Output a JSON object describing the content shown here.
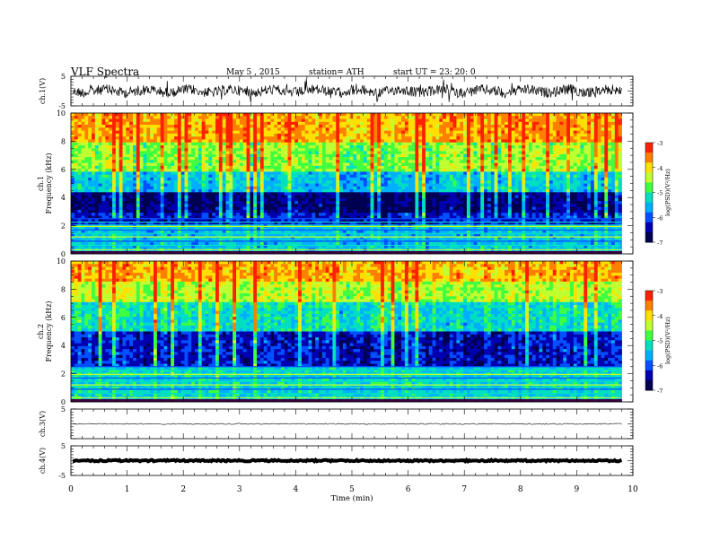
{
  "header": {
    "title": "VLF  Spectra",
    "date": "May 5   , 2015",
    "station": "station= ATH",
    "start_ut": "start  UT  =   23: 20: 0"
  },
  "chart_data": [
    {
      "type": "line",
      "panel": "ch1-waveform",
      "ylabel": "ch.1(V)",
      "ylim": [
        -5,
        5
      ],
      "y_tick_labels": [
        "5",
        "-5"
      ],
      "xlim": [
        0,
        10
      ],
      "series": [
        {
          "values_summary": "noisy waveform centered near 0 V, envelope about -2 to +2 V with spikes",
          "color": "#000000"
        }
      ]
    },
    {
      "type": "heatmap",
      "panel": "ch1-spectrogram",
      "ylabel": "ch.1\nFrequency (kHz)",
      "ylabel_line1": "ch.1",
      "ylabel_line2": "Frequency  (kHz)",
      "ylim": [
        0,
        10
      ],
      "y_tick_labels": [
        "10",
        "8",
        "6",
        "4",
        "2",
        "0"
      ],
      "xlim": [
        0,
        9.8
      ],
      "description_levels": [
        {
          "freq_khz": [
            0,
            2
          ],
          "log_psd": -5.5,
          "note": "horizontal narrowband lines"
        },
        {
          "freq_khz": [
            2,
            3
          ],
          "log_psd": -6.3
        },
        {
          "freq_khz": [
            3,
            4.3
          ],
          "log_psd": -6.7
        },
        {
          "freq_khz": [
            4.3,
            5.8
          ],
          "log_psd": -5.5
        },
        {
          "freq_khz": [
            5.8,
            8
          ],
          "log_psd": -4.6
        },
        {
          "freq_khz": [
            8,
            10
          ],
          "log_psd": -3.8
        }
      ],
      "colorbar": {
        "label": "log(PSD)(V²/Hz)",
        "range": [
          -7,
          -3
        ],
        "ticks": [
          "-3",
          "-4",
          "-5",
          "-6",
          "-7"
        ]
      }
    },
    {
      "type": "heatmap",
      "panel": "ch2-spectrogram",
      "ylabel": "ch.2\nFrequency (kHz)",
      "ylabel_line1": "ch.2",
      "ylabel_line2": "Frequency  (kHz)",
      "ylim": [
        0,
        10
      ],
      "y_tick_labels": [
        "10",
        "8",
        "6",
        "4",
        "2",
        "0"
      ],
      "xlim": [
        0,
        9.8
      ],
      "description_levels": [
        {
          "freq_khz": [
            0,
            2.5
          ],
          "log_psd": -5.3,
          "note": "horizontal narrowband lines"
        },
        {
          "freq_khz": [
            2.5,
            5
          ],
          "log_psd": -6.3
        },
        {
          "freq_khz": [
            5,
            7
          ],
          "log_psd": -5.2
        },
        {
          "freq_khz": [
            7,
            8.5
          ],
          "log_psd": -4.4
        },
        {
          "freq_khz": [
            8.5,
            10
          ],
          "log_psd": -3.8
        }
      ],
      "colorbar": {
        "label": "log(PSD)(V²/Hz)",
        "range": [
          -7,
          -3
        ],
        "ticks": [
          "-3",
          "-4",
          "-5",
          "-6",
          "-7"
        ]
      }
    },
    {
      "type": "line",
      "panel": "ch3-waveform",
      "ylabel": "ch.3(V)",
      "ylim": [
        -5,
        5
      ],
      "y_tick_labels": [
        "5"
      ],
      "xlim": [
        0,
        10
      ],
      "series": [
        {
          "values_summary": "flat line near 0 V with very small noise",
          "color": "#000000"
        }
      ]
    },
    {
      "type": "line",
      "panel": "ch4-waveform",
      "ylabel": "ch.4(V)",
      "ylim": [
        -5,
        5
      ],
      "y_tick_labels": [
        "5",
        "-5"
      ],
      "xlim": [
        0,
        10
      ],
      "series": [
        {
          "values_summary": "thick flat line near 0 V",
          "color": "#000000"
        }
      ]
    }
  ],
  "x_axis": {
    "label": "Time  (min)",
    "tick_labels": [
      "0",
      "1",
      "2",
      "3",
      "4",
      "5",
      "6",
      "7",
      "8",
      "9",
      "10"
    ],
    "range": [
      0,
      10
    ]
  },
  "colormap": [
    "#000050",
    "#0000b0",
    "#0050ff",
    "#00b0ff",
    "#00e0c0",
    "#40ff40",
    "#c0ff30",
    "#ffe000",
    "#ff8000",
    "#ff2000",
    "#ffffff"
  ]
}
